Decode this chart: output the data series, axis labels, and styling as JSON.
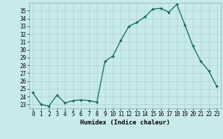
{
  "x": [
    0,
    1,
    2,
    3,
    4,
    5,
    6,
    7,
    8,
    9,
    10,
    11,
    12,
    13,
    14,
    15,
    16,
    17,
    18,
    19,
    20,
    21,
    22,
    23
  ],
  "y": [
    24.5,
    23.0,
    22.8,
    24.2,
    23.2,
    23.5,
    23.6,
    23.5,
    23.3,
    28.5,
    29.2,
    31.2,
    33.0,
    33.5,
    34.2,
    35.2,
    35.3,
    34.8,
    35.8,
    33.2,
    30.5,
    28.5,
    27.3,
    25.3
  ],
  "line_color": "#1a6e60",
  "marker": "D",
  "marker_size": 1.8,
  "bg_color": "#c8eaea",
  "grid_color": "#b0d4d4",
  "xlabel": "Humidex (Indice chaleur)",
  "ylim": [
    22.5,
    36.0
  ],
  "yticks": [
    23,
    24,
    25,
    26,
    27,
    28,
    29,
    30,
    31,
    32,
    33,
    34,
    35
  ],
  "xticks": [
    0,
    1,
    2,
    3,
    4,
    5,
    6,
    7,
    8,
    9,
    10,
    11,
    12,
    13,
    14,
    15,
    16,
    17,
    18,
    19,
    20,
    21,
    22,
    23
  ],
  "xlabel_fontsize": 6.5,
  "tick_fontsize": 5.5,
  "line_width": 1.0
}
